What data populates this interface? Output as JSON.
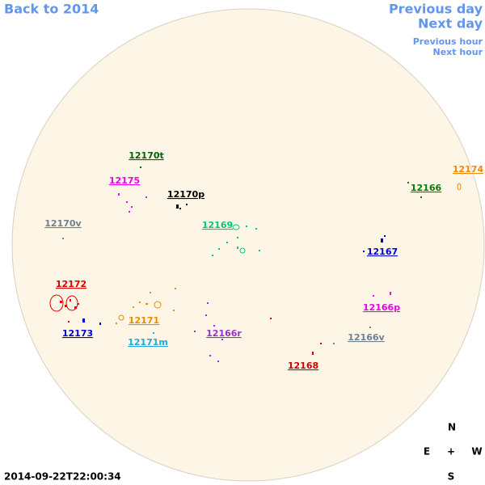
{
  "nav": {
    "back": "Back to 2014",
    "previous_day": "Previous day",
    "next_day": "Next day",
    "previous_hour": "Previous hour",
    "next_hour": "Next hour"
  },
  "regions": [
    {
      "label": "12170t",
      "color": "#006400"
    },
    {
      "label": "12175",
      "color": "#ee00ee"
    },
    {
      "label": "12170p",
      "color": "#000000"
    },
    {
      "label": "12174",
      "color": "#ee8c00"
    },
    {
      "label": "12166",
      "color": "#008000"
    },
    {
      "label": "12170v",
      "color": "#708090"
    },
    {
      "label": "12169",
      "color": "#00c878"
    },
    {
      "label": "12167",
      "color": "#0000cd"
    },
    {
      "label": "12172",
      "color": "#dd0000"
    },
    {
      "label": "12166p",
      "color": "#ee00ee"
    },
    {
      "label": "12171",
      "color": "#ee8c00"
    },
    {
      "label": "12173",
      "color": "#0000cd"
    },
    {
      "label": "12166r",
      "color": "#9932cc"
    },
    {
      "label": "12171m",
      "color": "#20a8e0"
    },
    {
      "label": "12166v",
      "color": "#708090"
    },
    {
      "label": "12168",
      "color": "#cc0000"
    }
  ],
  "compass": {
    "north": "N",
    "east": "E",
    "center": "+",
    "west": "W",
    "south": "S"
  },
  "timestamp": "2014-09-22T22:00:34"
}
